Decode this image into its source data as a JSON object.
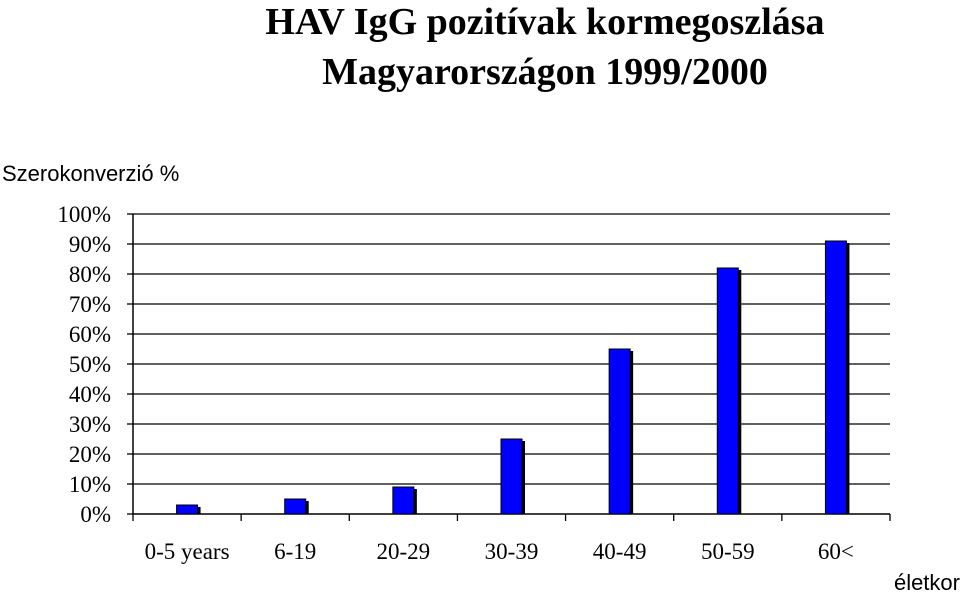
{
  "title": {
    "line1": "HAV IgG pozitívak kormegoszlása",
    "line2": "Magyarországon 1999/2000"
  },
  "chart_data": {
    "type": "bar",
    "title": "HAV IgG pozitívak kormegoszlása Magyarországon 1999/2000",
    "ylabel": "Szerokonverzió %",
    "xlabel": "életkor",
    "categories": [
      "0-5 years",
      "6-19",
      "20-29",
      "30-39",
      "40-49",
      "50-59",
      "60<"
    ],
    "values": [
      3,
      5,
      9,
      25,
      55,
      82,
      91
    ],
    "ylim": [
      0,
      100
    ],
    "yticks": [
      "0%",
      "10%",
      "20%",
      "30%",
      "40%",
      "50%",
      "60%",
      "70%",
      "80%",
      "90%",
      "100%"
    ],
    "grid": true,
    "legend": "none",
    "colors": {
      "bar": "#0000ff",
      "bar_shadow": "#000000",
      "grid": "#000000",
      "axis": "#000000"
    }
  }
}
